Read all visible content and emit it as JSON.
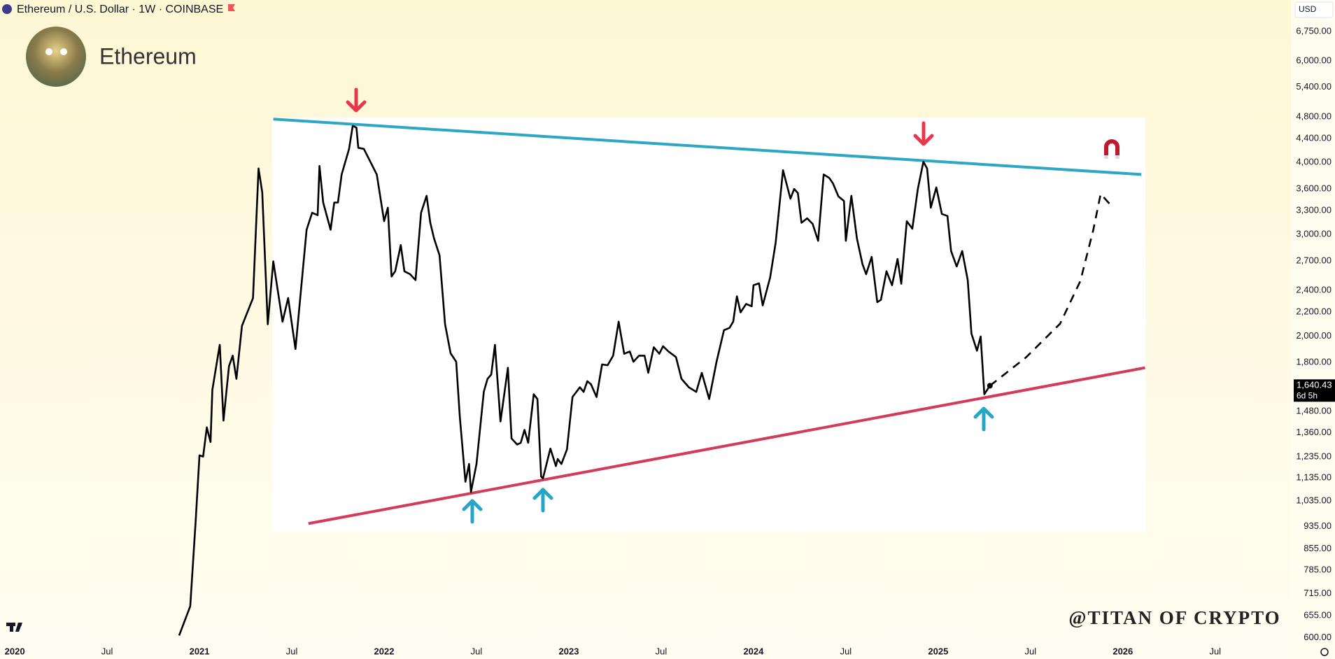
{
  "chart_data": {
    "type": "line",
    "title": "Ethereum / U.S. Dollar · 1W · COINBASE",
    "subtitle": "Ethereum",
    "watermark": "@TITAN OF CRYPTO",
    "currency": "USD",
    "log_scale": true,
    "color": "#000000",
    "x": [
      2020.89,
      2020.95,
      2020.98,
      2021.0,
      2021.02,
      2021.04,
      2021.06,
      2021.07,
      2021.1,
      2021.11,
      2021.13,
      2021.16,
      2021.18,
      2021.2,
      2021.23,
      2021.29,
      2021.32,
      2021.34,
      2021.37,
      2021.4,
      2021.45,
      2021.48,
      2021.52,
      2021.58,
      2021.61,
      2021.64,
      2021.65,
      2021.67,
      2021.71,
      2021.73,
      2021.75,
      2021.77,
      2021.81,
      2021.83,
      2021.85,
      2021.86,
      2021.89,
      2021.93,
      2021.96,
      2022.0,
      2022.02,
      2022.04,
      2022.06,
      2022.09,
      2022.11,
      2022.14,
      2022.17,
      2022.2,
      2022.23,
      2022.25,
      2022.27,
      2022.3,
      2022.33,
      2022.36,
      2022.39,
      2022.41,
      2022.44,
      2022.46,
      2022.47,
      2022.5,
      2022.54,
      2022.56,
      2022.58,
      2022.6,
      2022.63,
      2022.67,
      2022.69,
      2022.72,
      2022.74,
      2022.76,
      2022.78,
      2022.81,
      2022.83,
      2022.85,
      2022.86,
      2022.9,
      2022.93,
      2022.94,
      2022.96,
      2022.99,
      2023.02,
      2023.06,
      2023.08,
      2023.1,
      2023.12,
      2023.15,
      2023.18,
      2023.21,
      2023.24,
      2023.27,
      2023.3,
      2023.33,
      2023.35,
      2023.38,
      2023.41,
      2023.43,
      2023.46,
      2023.49,
      2023.51,
      2023.54,
      2023.58,
      2023.61,
      2023.65,
      2023.69,
      2023.72,
      2023.76,
      2023.8,
      2023.84,
      2023.87,
      2023.89,
      2023.91,
      2023.93,
      2023.96,
      2023.99,
      2024.0,
      2024.03,
      2024.05,
      2024.09,
      2024.12,
      2024.16,
      2024.2,
      2024.22,
      2024.24,
      2024.26,
      2024.29,
      2024.32,
      2024.35,
      2024.38,
      2024.41,
      2024.43,
      2024.46,
      2024.49,
      2024.5,
      2024.53,
      2024.56,
      2024.59,
      2024.61,
      2024.64,
      2024.67,
      2024.69,
      2024.72,
      2024.75,
      2024.78,
      2024.8,
      2024.83,
      2024.86,
      2024.89,
      2024.92,
      2024.94,
      2024.96,
      2024.99,
      2025.02,
      2025.05,
      2025.07,
      2025.1,
      2025.13,
      2025.16,
      2025.18,
      2025.21,
      2025.23,
      2025.25,
      2025.28
    ],
    "values": [
      605,
      680,
      962,
      1242,
      1236,
      1389,
      1310,
      1613,
      1849,
      1931,
      1427,
      1774,
      1849,
      1686,
      2082,
      2328,
      3905,
      3550,
      2096,
      2695,
      2118,
      2328,
      1899,
      3057,
      3272,
      3240,
      3944,
      3408,
      3057,
      3408,
      3408,
      3812,
      4222,
      4627,
      4598,
      4240,
      4222,
      3984,
      3812,
      3163,
      3338,
      2536,
      2590,
      2876,
      2590,
      2560,
      2500,
      3272,
      3501,
      3143,
      2954,
      2760,
      2096,
      1867,
      1805,
      1447,
      1118,
      1200,
      1073,
      1200,
      1602,
      1686,
      1715,
      1931,
      1422,
      1762,
      1329,
      1297,
      1306,
      1375,
      1306,
      1585,
      1555,
      1141,
      1133,
      1276,
      1190,
      1224,
      1200,
      1272,
      1568,
      1630,
      1600,
      1670,
      1650,
      1568,
      1786,
      1780,
      1849,
      2118,
      1863,
      1880,
      1805,
      1849,
      1849,
      1727,
      1912,
      1863,
      1920,
      1880,
      1839,
      1686,
      1630,
      1600,
      1727,
      1555,
      1805,
      2047,
      2066,
      2118,
      2344,
      2198,
      2274,
      2252,
      2450,
      2468,
      2260,
      2527,
      2904,
      3877,
      3460,
      3598,
      3540,
      3143,
      3200,
      3130,
      2925,
      3812,
      3760,
      3680,
      3492,
      3430,
      2925,
      3501,
      2954,
      2667,
      2560,
      2743,
      2290,
      2310,
      2590,
      2450,
      2720,
      2464,
      3163,
      3070,
      3598,
      4011,
      3905,
      3338,
      3620,
      3256,
      3230,
      2808,
      2640,
      2808,
      2500,
      2019,
      1886,
      1996,
      1585,
      1640.43
    ],
    "last_price": {
      "value": 1640.43,
      "label": "1,640.43"
    },
    "countdown": "6d 5h",
    "projection": {
      "color": "#000000",
      "x": [
        2025.28,
        2025.475,
        2025.66,
        2025.77,
        2025.84,
        2025.88,
        2025.93
      ],
      "values": [
        1640,
        1836,
        2101,
        2492,
        3057,
        3527,
        3385
      ]
    },
    "trendlines": [
      {
        "color": "#2ea7c2",
        "x": [
          2021.4,
          2026.1
        ],
        "values": [
          4755,
          3812
        ]
      },
      {
        "color": "#d23c5a",
        "x": [
          2021.59,
          2026.12
        ],
        "values": [
          946,
          1762
        ]
      }
    ],
    "xlim": [
      2019.92,
      2026.91
    ],
    "xticks": [
      2020,
      {
        "value": 2020.5,
        "label": "Jul"
      },
      2021,
      {
        "value": 2021.5,
        "label": "Jul"
      },
      2022,
      {
        "value": 2022.5,
        "label": "Jul"
      },
      2023,
      {
        "value": 2023.5,
        "label": "Jul"
      },
      2024,
      {
        "value": 2024.5,
        "label": "Jul"
      },
      2025,
      {
        "value": 2025.5,
        "label": "Jul"
      },
      2026,
      {
        "value": 2026.5,
        "label": "Jul"
      }
    ],
    "ylim": [
      594,
      7650
    ],
    "yticks": [
      {
        "value": 600,
        "label": "600.00"
      },
      {
        "value": 655,
        "label": "655.00"
      },
      {
        "value": 715,
        "label": "715.00"
      },
      {
        "value": 785,
        "label": "785.00"
      },
      {
        "value": 855,
        "label": "855.00"
      },
      {
        "value": 935,
        "label": "935.00"
      },
      {
        "value": 1035,
        "label": "1,035.00"
      },
      {
        "value": 1135,
        "label": "1,135.00"
      },
      {
        "value": 1235,
        "label": "1,235.00"
      },
      {
        "value": 1360,
        "label": "1,360.00"
      },
      {
        "value": 1480,
        "label": "1,480.00"
      },
      {
        "value": 1800,
        "label": "1,800.00"
      },
      {
        "value": 2000,
        "label": "2,000.00"
      },
      {
        "value": 2200,
        "label": "2,200.00"
      },
      {
        "value": 2400,
        "label": "2,400.00"
      },
      {
        "value": 2700,
        "label": "2,700.00"
      },
      {
        "value": 3000,
        "label": "3,000.00"
      },
      {
        "value": 3300,
        "label": "3,300.00"
      },
      {
        "value": 3600,
        "label": "3,600.00"
      },
      {
        "value": 4000,
        "label": "4,000.00"
      },
      {
        "value": 4400,
        "label": "4,400.00"
      },
      {
        "value": 4800,
        "label": "4,800.00"
      },
      {
        "value": 5400,
        "label": "5,400.00"
      },
      {
        "value": 6000,
        "label": "6,000.00"
      },
      {
        "value": 6750,
        "label": "6,750.00"
      }
    ]
  }
}
